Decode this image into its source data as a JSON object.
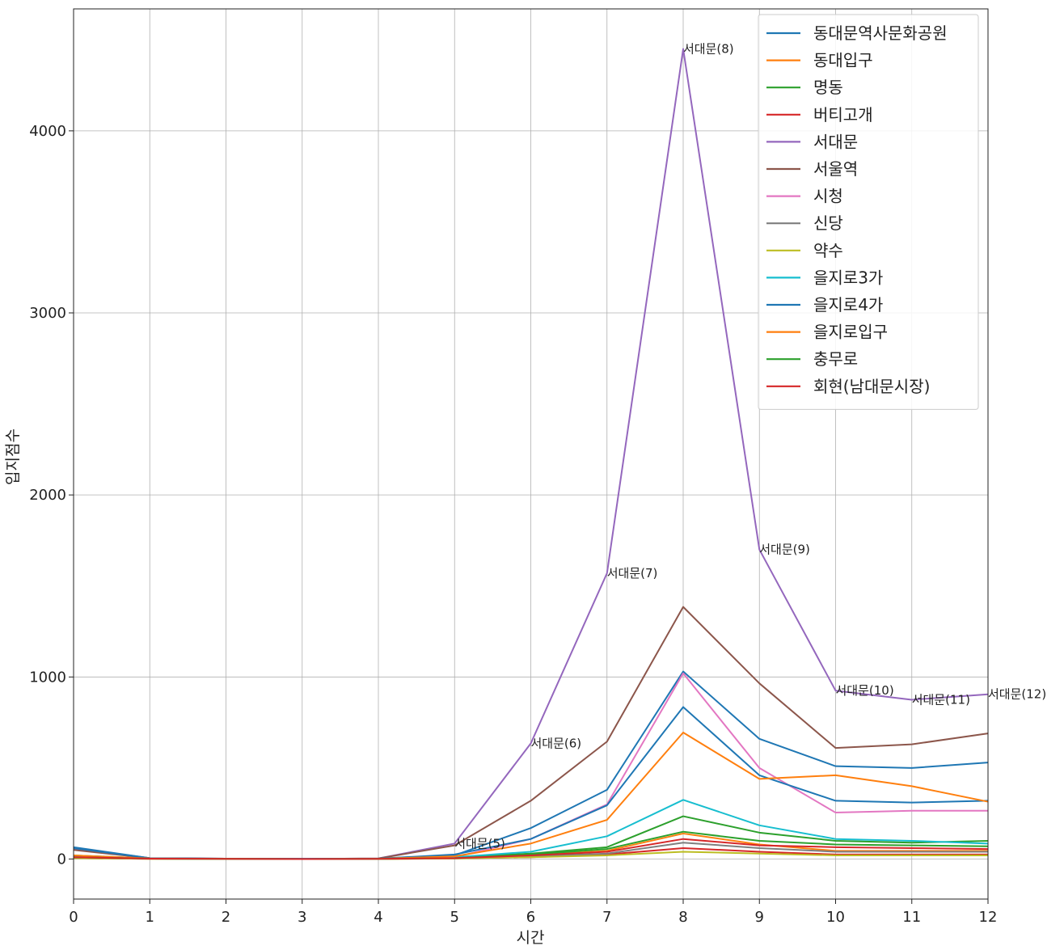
{
  "chart_data": {
    "type": "line",
    "xlabel": "시간",
    "ylabel": "입지점수",
    "xlim": [
      0,
      12
    ],
    "ylim": [
      -220,
      4670
    ],
    "x": [
      0,
      1,
      2,
      3,
      4,
      5,
      6,
      7,
      8,
      9,
      10,
      11,
      12
    ],
    "x_ticks": [
      0,
      1,
      2,
      3,
      4,
      5,
      6,
      7,
      8,
      9,
      10,
      11,
      12
    ],
    "y_ticks": [
      0,
      1000,
      2000,
      3000,
      4000
    ],
    "grid": true,
    "legend_position": "top-right",
    "series": [
      {
        "name": "동대문역사문화공원",
        "color": "#1f77b4",
        "values": [
          65,
          5,
          2,
          1,
          2,
          20,
          170,
          380,
          1030,
          660,
          510,
          500,
          530
        ]
      },
      {
        "name": "동대입구",
        "color": "#ff7f0e",
        "values": [
          10,
          2,
          1,
          0,
          1,
          5,
          20,
          45,
          140,
          80,
          45,
          45,
          45
        ]
      },
      {
        "name": "명동",
        "color": "#2ca02c",
        "values": [
          20,
          3,
          1,
          0,
          1,
          10,
          30,
          65,
          235,
          145,
          100,
          90,
          100
        ]
      },
      {
        "name": "버티고개",
        "color": "#d62728",
        "values": [
          5,
          1,
          0,
          0,
          0,
          3,
          10,
          25,
          60,
          40,
          25,
          25,
          25
        ]
      },
      {
        "name": "서대문",
        "color": "#9467bd",
        "values": [
          55,
          5,
          2,
          1,
          3,
          85,
          635,
          1570,
          4450,
          1700,
          925,
          875,
          905
        ]
      },
      {
        "name": "서울역",
        "color": "#8c564b",
        "values": [
          50,
          5,
          2,
          1,
          3,
          75,
          320,
          645,
          1385,
          965,
          610,
          630,
          690
        ]
      },
      {
        "name": "시청",
        "color": "#e377c2",
        "values": [
          15,
          2,
          1,
          0,
          1,
          10,
          110,
          300,
          1020,
          500,
          255,
          265,
          265
        ]
      },
      {
        "name": "신당",
        "color": "#7f7f7f",
        "values": [
          10,
          2,
          1,
          0,
          1,
          5,
          15,
          30,
          90,
          60,
          40,
          40,
          40
        ]
      },
      {
        "name": "약수",
        "color": "#bcbd22",
        "values": [
          5,
          1,
          0,
          0,
          0,
          3,
          10,
          20,
          40,
          30,
          20,
          20,
          20
        ]
      },
      {
        "name": "을지로3가",
        "color": "#17becf",
        "values": [
          15,
          2,
          1,
          0,
          1,
          10,
          40,
          125,
          325,
          185,
          110,
          100,
          85
        ]
      },
      {
        "name": "을지로4가",
        "color": "#1f77b4",
        "values": [
          60,
          5,
          2,
          1,
          2,
          25,
          110,
          295,
          835,
          460,
          320,
          310,
          320
        ]
      },
      {
        "name": "을지로입구",
        "color": "#ff7f0e",
        "values": [
          20,
          3,
          1,
          0,
          1,
          15,
          85,
          215,
          695,
          440,
          460,
          400,
          315
        ]
      },
      {
        "name": "충무로",
        "color": "#2ca02c",
        "values": [
          10,
          2,
          1,
          0,
          1,
          5,
          25,
          55,
          150,
          100,
          80,
          75,
          70
        ]
      },
      {
        "name": "회현(남대문시장)",
        "color": "#d62728",
        "values": [
          10,
          2,
          1,
          0,
          1,
          5,
          20,
          40,
          110,
          75,
          65,
          60,
          55
        ]
      }
    ],
    "annotations": [
      {
        "text": "서대문(5)",
        "x": 5,
        "y": 85
      },
      {
        "text": "서대문(6)",
        "x": 6,
        "y": 635
      },
      {
        "text": "서대문(7)",
        "x": 7,
        "y": 1570
      },
      {
        "text": "서대문(8)",
        "x": 8,
        "y": 4450
      },
      {
        "text": "서대문(9)",
        "x": 9,
        "y": 1700
      },
      {
        "text": "서대문(10)",
        "x": 10,
        "y": 925
      },
      {
        "text": "서대문(11)",
        "x": 11,
        "y": 875
      },
      {
        "text": "서대문(12)",
        "x": 12,
        "y": 905
      }
    ]
  }
}
